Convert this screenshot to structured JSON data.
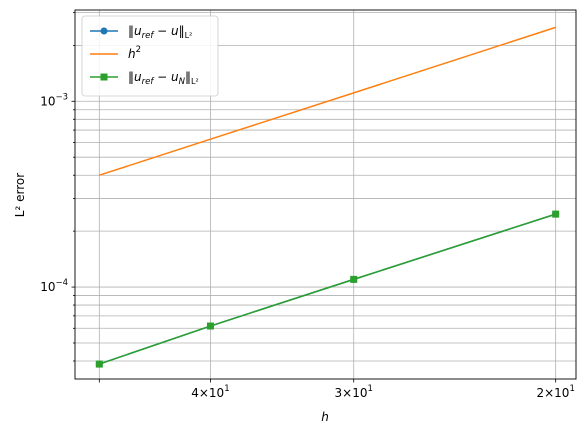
{
  "chart_data": {
    "type": "line",
    "xlabel": "h",
    "ylabel": "L² error",
    "x_scale": "log, reversed",
    "y_scale": "log",
    "x": [
      50,
      40,
      30,
      20
    ],
    "xlim": [
      52.5,
      19.2
    ],
    "ylim": [
      3.2e-05,
      0.0031
    ],
    "grid": "on",
    "legend_position": "top-left",
    "x_tick_labels": [
      {
        "x": 40,
        "base": "4×10",
        "exp": "1"
      },
      {
        "x": 30,
        "base": "3×10",
        "exp": "1"
      },
      {
        "x": 20,
        "base": "2×10",
        "exp": "1"
      }
    ],
    "y_major_ticks": [
      {
        "y": 0.001,
        "base": "10",
        "exp": "−3"
      },
      {
        "y": 0.0001,
        "base": "10",
        "exp": "−4"
      }
    ],
    "series": [
      {
        "name": "‖u_ref − u‖_L²",
        "legend_parts": {
          "pre": "‖u",
          "sub1": "ref",
          "mid": " − u‖",
          "sub2": "L²"
        },
        "color": "#1f77b4",
        "marker": "circle",
        "values": [
          3.85e-05,
          6.17e-05,
          0.00011,
          0.000247
        ]
      },
      {
        "name": "h²",
        "legend_parts": {
          "pre": "h",
          "sup": "2"
        },
        "color": "#ff7f0e",
        "marker": "none",
        "values": [
          0.0004,
          0.000625,
          0.00111,
          0.0025
        ]
      },
      {
        "name": "‖u_ref − u_N‖_L²",
        "legend_parts": {
          "pre": "‖u",
          "sub1": "ref",
          "mid": " − u",
          "sub3": "N",
          "post": "‖",
          "sub2": "L²"
        },
        "color": "#2ca02c",
        "marker": "square",
        "values": [
          3.85e-05,
          6.17e-05,
          0.00011,
          0.000247
        ]
      }
    ]
  }
}
